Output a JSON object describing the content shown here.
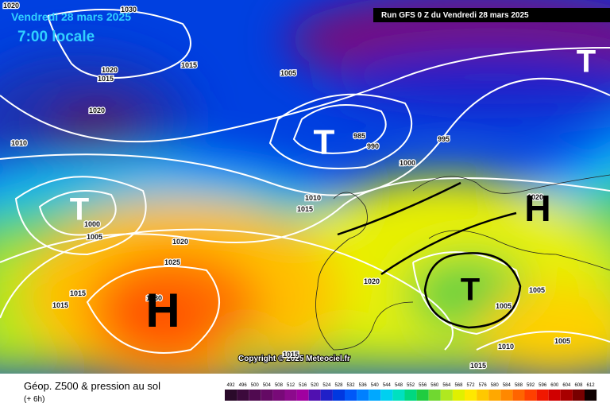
{
  "header": {
    "date": "Vendredi 28 mars 2025",
    "time": "7:00 locale",
    "run": "Run GFS 0 Z du Vendredi 28 mars 2025"
  },
  "isobar_labels": [
    "1020",
    "1030",
    "1020",
    "1015",
    "1015",
    "1005",
    "1020",
    "1010",
    "985",
    "990",
    "995",
    "1000",
    "1010",
    "1015",
    "1020",
    "1000",
    "1005",
    "1020",
    "1025",
    "1015",
    "1015",
    "1030",
    "1020",
    "1005",
    "1005",
    "1005",
    "1010",
    "1015",
    "1015"
  ],
  "pressure_centers": [
    {
      "label": "H"
    },
    {
      "label": "H"
    },
    {
      "label": "T"
    },
    {
      "label": "T"
    },
    {
      "label": "T"
    },
    {
      "label": "T"
    }
  ],
  "copyright": "Copyright © 2025 Meteociel.fr",
  "legend": {
    "title": "Géop. Z500 & pression au sol",
    "subtitle": "(+ 6h)",
    "scale": [
      {
        "label": "492",
        "color": "#2a0a2a"
      },
      {
        "label": "496",
        "color": "#3c0a3c"
      },
      {
        "label": "500",
        "color": "#500a50"
      },
      {
        "label": "504",
        "color": "#640a64"
      },
      {
        "label": "508",
        "color": "#780a78"
      },
      {
        "label": "512",
        "color": "#8c0a8c"
      },
      {
        "label": "516",
        "color": "#a000a0"
      },
      {
        "label": "520",
        "color": "#5010b0"
      },
      {
        "label": "524",
        "color": "#2020c8"
      },
      {
        "label": "528",
        "color": "#0038e0"
      },
      {
        "label": "532",
        "color": "#0058f8"
      },
      {
        "label": "536",
        "color": "#0080ff"
      },
      {
        "label": "540",
        "color": "#00a8ff"
      },
      {
        "label": "544",
        "color": "#00d0f0"
      },
      {
        "label": "548",
        "color": "#00e0c0"
      },
      {
        "label": "552",
        "color": "#00d880"
      },
      {
        "label": "556",
        "color": "#20cc40"
      },
      {
        "label": "560",
        "color": "#70d830"
      },
      {
        "label": "564",
        "color": "#b0e820"
      },
      {
        "label": "568",
        "color": "#e0f000"
      },
      {
        "label": "572",
        "color": "#ffe800"
      },
      {
        "label": "576",
        "color": "#ffc800"
      },
      {
        "label": "580",
        "color": "#ffa800"
      },
      {
        "label": "584",
        "color": "#ff8800"
      },
      {
        "label": "588",
        "color": "#ff6400"
      },
      {
        "label": "592",
        "color": "#ff4000"
      },
      {
        "label": "596",
        "color": "#f01800"
      },
      {
        "label": "600",
        "color": "#d00000"
      },
      {
        "label": "604",
        "color": "#a80000"
      },
      {
        "label": "608",
        "color": "#780000"
      },
      {
        "label": "612",
        "color": "#100000"
      }
    ]
  }
}
